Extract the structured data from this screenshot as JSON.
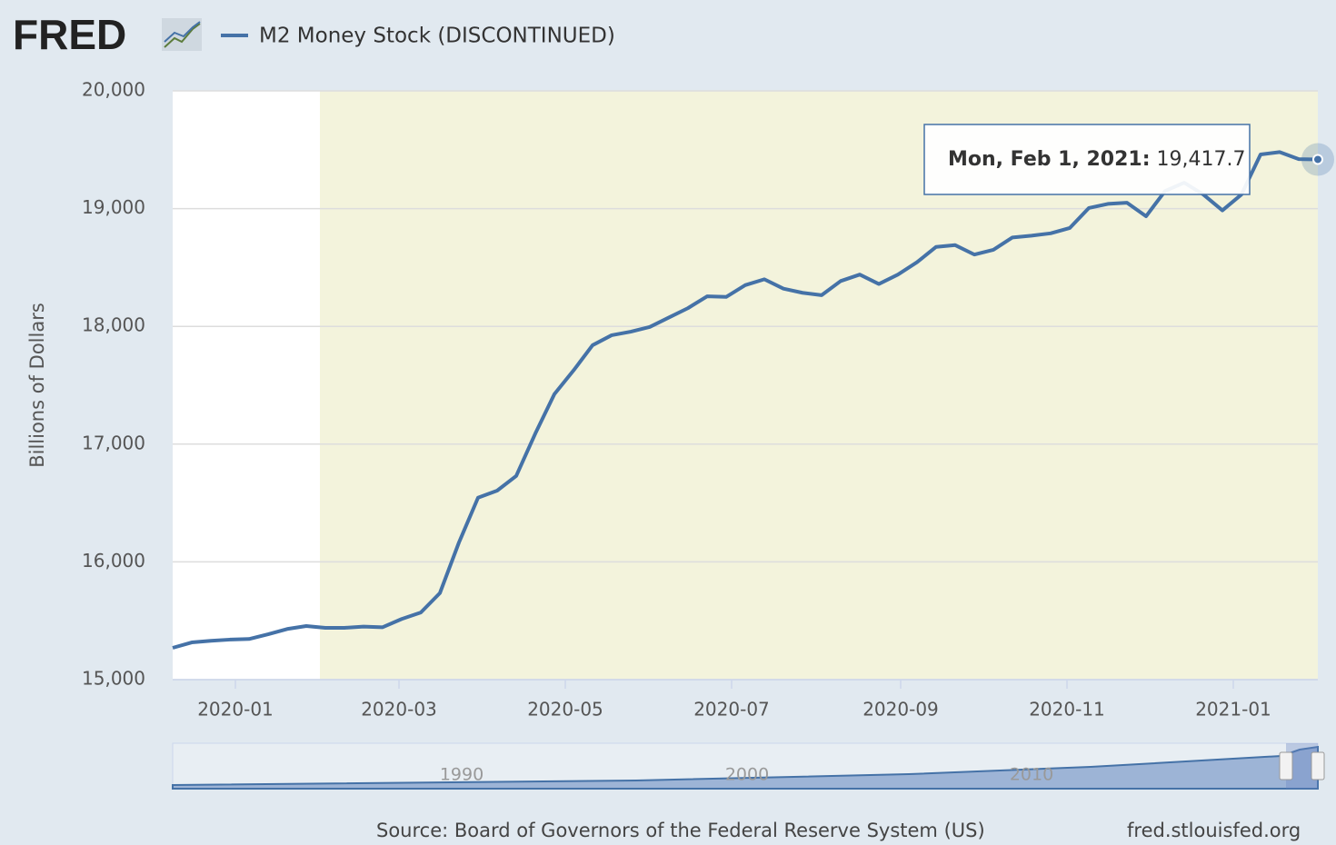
{
  "logo": "FRED",
  "chart_data": {
    "type": "line",
    "series": [
      {
        "name": "M2 Money Stock (DISCONTINUED)",
        "color": "#4572a7",
        "values": [
          15270,
          15316,
          15330,
          15340,
          15345,
          15385,
          15430,
          15455,
          15440,
          15440,
          15450,
          15445,
          15515,
          15570,
          15735,
          16165,
          16545,
          16605,
          16730,
          17090,
          17425,
          17625,
          17840,
          17925,
          17955,
          17995,
          18075,
          18155,
          18255,
          18250,
          18350,
          18400,
          18320,
          18285,
          18265,
          18385,
          18440,
          18360,
          18440,
          18545,
          18675,
          18690,
          18610,
          18650,
          18755,
          18770,
          18790,
          18835,
          19005,
          19040,
          19050,
          18935,
          19150,
          19220,
          19120,
          18985,
          19120,
          19460,
          19480,
          19420,
          19417.7
        ]
      }
    ],
    "x": [
      "2019-12-09",
      "2019-12-16",
      "2019-12-23",
      "2019-12-30",
      "2020-01-06",
      "2020-01-13",
      "2020-01-20",
      "2020-01-27",
      "2020-02-03",
      "2020-02-10",
      "2020-02-17",
      "2020-02-24",
      "2020-03-02",
      "2020-03-09",
      "2020-03-16",
      "2020-03-23",
      "2020-03-30",
      "2020-04-06",
      "2020-04-13",
      "2020-04-20",
      "2020-04-27",
      "2020-05-04",
      "2020-05-11",
      "2020-05-18",
      "2020-05-25",
      "2020-06-01",
      "2020-06-08",
      "2020-06-15",
      "2020-06-22",
      "2020-06-29",
      "2020-07-06",
      "2020-07-13",
      "2020-07-20",
      "2020-07-27",
      "2020-08-03",
      "2020-08-10",
      "2020-08-17",
      "2020-08-24",
      "2020-08-31",
      "2020-09-07",
      "2020-09-14",
      "2020-09-21",
      "2020-09-28",
      "2020-10-05",
      "2020-10-12",
      "2020-10-19",
      "2020-10-26",
      "2020-11-02",
      "2020-11-09",
      "2020-11-16",
      "2020-11-23",
      "2020-11-30",
      "2020-12-07",
      "2020-12-14",
      "2020-12-21",
      "2020-12-28",
      "2021-01-04",
      "2021-01-11",
      "2021-01-18",
      "2021-01-25",
      "2021-02-01"
    ],
    "xlim": [
      "2019-12-09",
      "2021-02-01"
    ],
    "xticks": [
      {
        "value": "2020-01-01",
        "label": "2020-01"
      },
      {
        "value": "2020-03-01",
        "label": "2020-03"
      },
      {
        "value": "2020-05-01",
        "label": "2020-05"
      },
      {
        "value": "2020-07-01",
        "label": "2020-07"
      },
      {
        "value": "2020-09-01",
        "label": "2020-09"
      },
      {
        "value": "2020-11-01",
        "label": "2020-11"
      },
      {
        "value": "2021-01-01",
        "label": "2021-01"
      }
    ],
    "ylim": [
      15000,
      20000
    ],
    "yticks": [
      {
        "value": 15000,
        "label": "15,000"
      },
      {
        "value": 16000,
        "label": "16,000"
      },
      {
        "value": 17000,
        "label": "17,000"
      },
      {
        "value": 18000,
        "label": "18,000"
      },
      {
        "value": 19000,
        "label": "19,000"
      },
      {
        "value": 20000,
        "label": "20,000"
      }
    ],
    "ylabel": "Billions of Dollars",
    "grid": true,
    "shaded_range": [
      "2020-02-01",
      "2021-02-01"
    ],
    "tooltip": {
      "date_label": "Mon, Feb 1, 2021:",
      "value": 19417.7,
      "value_label": "19,417.7"
    },
    "navigator": {
      "labels": [
        "1990",
        "2000",
        "2010"
      ]
    },
    "source": "Source: Board of Governors of the Federal Reserve System (US)",
    "site": "fred.stlouisfed.org"
  }
}
